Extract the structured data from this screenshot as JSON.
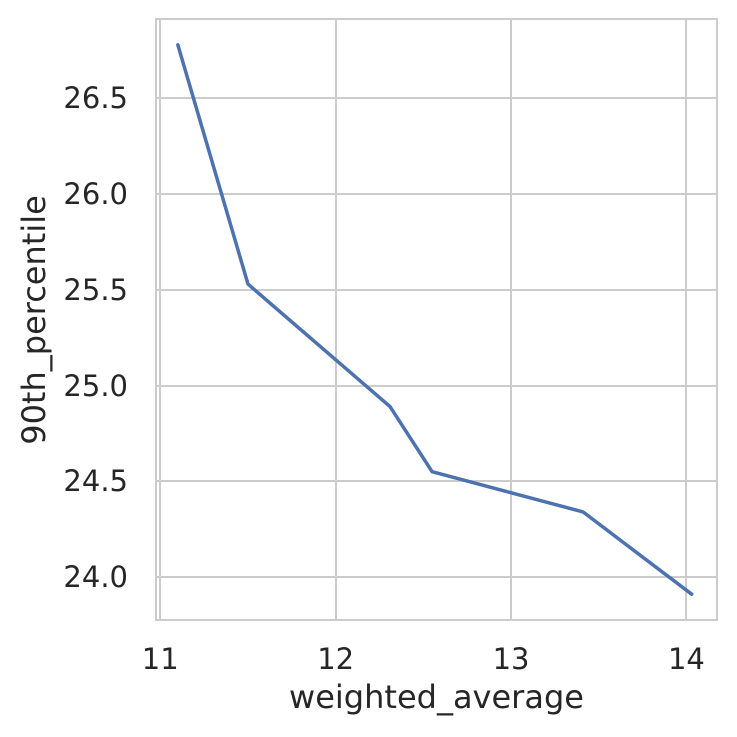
{
  "figure": {
    "background": "#ffffff"
  },
  "chart_data": {
    "type": "line",
    "title": "",
    "xlabel": "weighted_average",
    "ylabel": "90th_percentile",
    "series": [
      {
        "name": "90th_percentile",
        "color": "#4C72B0",
        "x": [
          11.1,
          11.5,
          12.31,
          12.55,
          13.41,
          14.03
        ],
        "y": [
          26.78,
          25.53,
          24.89,
          24.55,
          24.34,
          23.91
        ]
      }
    ],
    "xlim": [
      10.97,
      14.18
    ],
    "ylim": [
      23.77,
      26.92
    ],
    "x_ticks": [
      {
        "value": 11,
        "label": "11"
      },
      {
        "value": 12,
        "label": "12"
      },
      {
        "value": 13,
        "label": "13"
      },
      {
        "value": 14,
        "label": "14"
      }
    ],
    "y_ticks": [
      {
        "value": 24.0,
        "label": "24.0"
      },
      {
        "value": 24.5,
        "label": "24.5"
      },
      {
        "value": 25.0,
        "label": "25.0"
      },
      {
        "value": 25.5,
        "label": "25.5"
      },
      {
        "value": 26.0,
        "label": "26.0"
      },
      {
        "value": 26.5,
        "label": "26.5"
      }
    ],
    "grid": true,
    "legend": "none",
    "grid_color": "#cccccc",
    "spine_color": "#cccccc",
    "text_color": "#262626",
    "line_width": 3.5
  }
}
